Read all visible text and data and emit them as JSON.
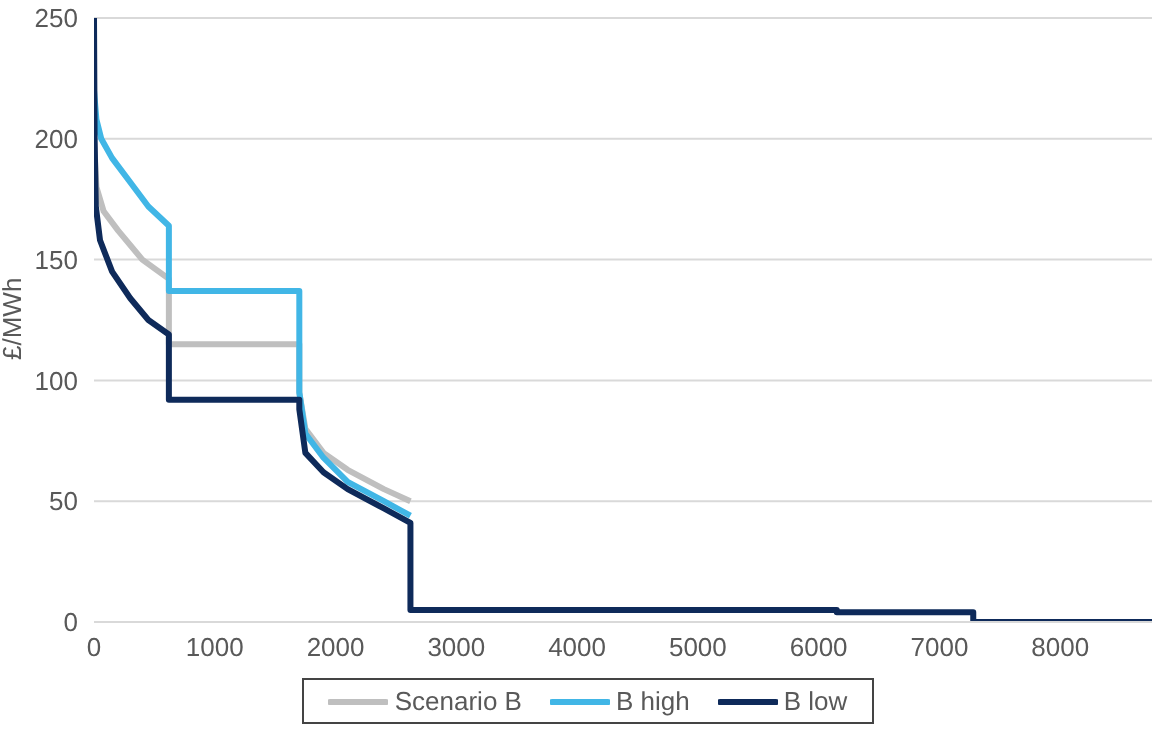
{
  "chart_data": {
    "type": "line",
    "ylabel": "£/MWh",
    "xlim": [
      0,
      8760
    ],
    "xticks": [
      0,
      1000,
      2000,
      3000,
      4000,
      5000,
      6000,
      7000,
      8000
    ],
    "ylim": [
      0,
      250
    ],
    "yticks": [
      0,
      50,
      100,
      150,
      200,
      250
    ],
    "grid": "y",
    "legend": "bottom",
    "marker": "none",
    "line_style": "solid",
    "series": [
      {
        "name": "Scenario B",
        "color": "#bfbfbf",
        "x": [
          0,
          20,
          80,
          200,
          400,
          620,
          620,
          1700,
          1700,
          1750,
          1900,
          2100,
          2400,
          2620
        ],
        "values": [
          200,
          180,
          170,
          162,
          150,
          142,
          115,
          115,
          95,
          80,
          70,
          63,
          55,
          50
        ]
      },
      {
        "name": "B high",
        "color": "#41b6e6",
        "x": [
          0,
          20,
          60,
          150,
          300,
          450,
          620,
          620,
          1700,
          1700,
          1750,
          1900,
          2100,
          2400,
          2620
        ],
        "values": [
          220,
          208,
          200,
          192,
          182,
          172,
          164,
          137,
          137,
          95,
          78,
          68,
          58,
          50,
          44
        ]
      },
      {
        "name": "B low",
        "color": "#0e2a5a",
        "x": [
          0,
          5,
          15,
          50,
          150,
          300,
          450,
          620,
          620,
          1700,
          1700,
          1750,
          1900,
          2100,
          2400,
          2620,
          2620,
          6150,
          6150,
          7280,
          7280,
          8760
        ],
        "values": [
          250,
          200,
          172,
          158,
          145,
          134,
          125,
          119,
          92,
          92,
          88,
          70,
          62,
          55,
          47,
          41,
          5,
          5,
          4,
          4,
          0,
          0
        ]
      }
    ]
  }
}
